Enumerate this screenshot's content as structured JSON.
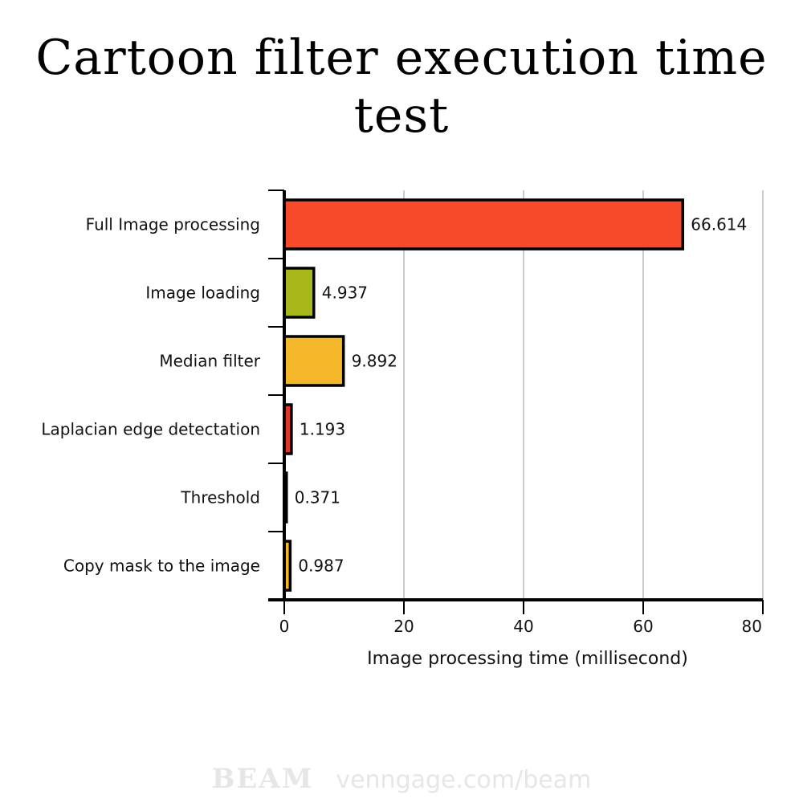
{
  "chart_data": {
    "type": "bar",
    "orientation": "horizontal",
    "title": "Cartoon filter execution time test",
    "xlabel": "Image processing time (millisecond)",
    "ylabel": "",
    "xlim": [
      0,
      80
    ],
    "xticks": [
      "0",
      "20",
      "40",
      "60",
      "80"
    ],
    "grid": true,
    "categories": [
      "Full Image processing",
      "Image loading",
      "Median filter",
      "Laplacian edge detectation",
      "Threshold",
      "Copy mask to the image"
    ],
    "values": [
      66.614,
      4.937,
      9.892,
      1.193,
      0.371,
      0.987
    ],
    "value_labels": [
      "66.614",
      "4.937",
      "9.892",
      "1.193",
      "0.371",
      "0.987"
    ],
    "colors": [
      "#f74a2a",
      "#a8b81a",
      "#f5b72a",
      "#e0352a",
      "#f74a2a",
      "#f5b72a"
    ]
  },
  "footer": {
    "brand": "BEAM",
    "url": "venngage.com/beam"
  }
}
